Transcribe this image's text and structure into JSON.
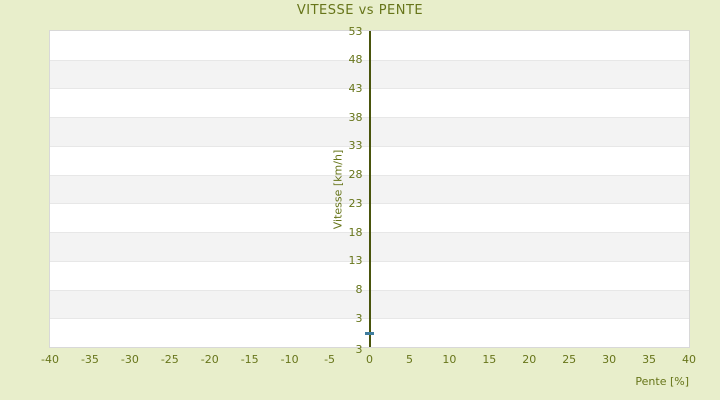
{
  "page": {
    "background_color": "#e8eecb",
    "text_color": "#67751a"
  },
  "chart_data": {
    "type": "scatter",
    "title": "VITESSE vs PENTE",
    "xlabel": "Pente [%]",
    "ylabel": "Vitesse [km/h]",
    "xlim": [
      -40,
      40
    ],
    "ylim": [
      -2,
      53
    ],
    "x_ticks": [
      -40,
      -35,
      -30,
      -25,
      -20,
      -15,
      -10,
      -5,
      0,
      5,
      10,
      15,
      20,
      25,
      30,
      35,
      40
    ],
    "y_ticks": [
      53,
      48,
      43,
      38,
      33,
      28,
      23,
      18,
      13,
      8,
      3
    ],
    "y_axis_bottom_corner_label": "3",
    "grid": {
      "band_color_a": "#ffffff",
      "band_color_b": "#f3f3f3",
      "band_line_color": "#e7e7e7",
      "plot_border_color": "#d8d8d8"
    },
    "axes": {
      "y_axis_line_at_x": 0,
      "y_axis_line_color": "#49540c"
    },
    "legend": null,
    "series": [
      {
        "name": "vitesse-vs-pente",
        "marker": "dash",
        "marker_color": "#3f7d9e",
        "points": [
          {
            "x": 0,
            "y": 0.3
          }
        ]
      }
    ]
  }
}
